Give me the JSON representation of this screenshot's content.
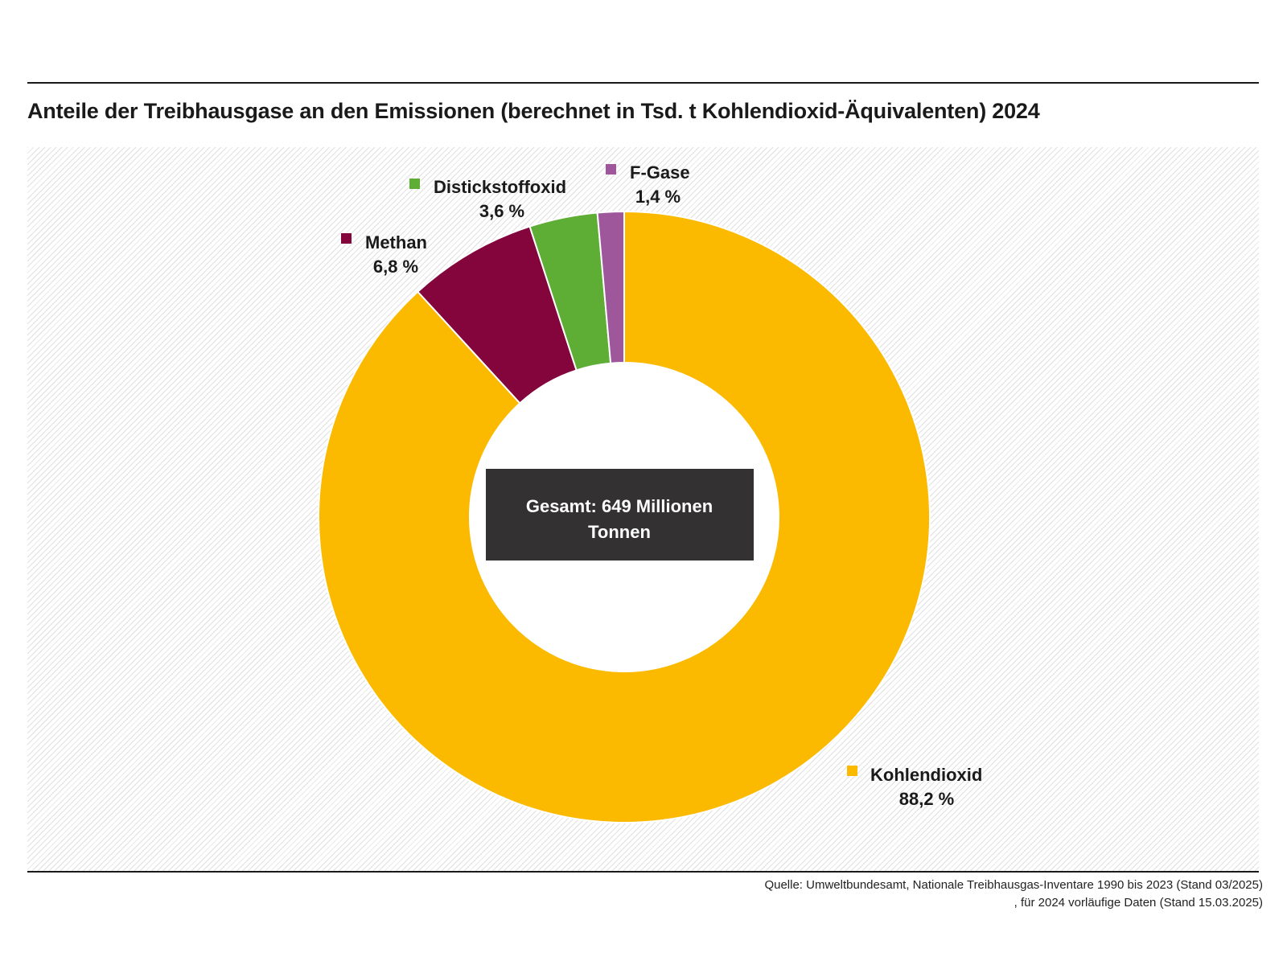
{
  "chart_data": {
    "type": "pie",
    "variant": "donut",
    "title": "Anteile der Treibhausgase an den Emissionen (berechnet in Tsd. t Kohlendioxid-Äquivalenten) 2024",
    "center_label": "Gesamt: 649 Millionen Tonnen",
    "center_label_lines": [
      "Gesamt: 649 Millionen",
      "Tonnen"
    ],
    "slices": [
      {
        "name": "Kohlendioxid",
        "value": 88.2,
        "label": "88,2 %",
        "color": "#FBBA00"
      },
      {
        "name": "Methan",
        "value": 6.8,
        "label": "6,8 %",
        "color": "#83053C"
      },
      {
        "name": "Distickstoffoxid",
        "value": 3.6,
        "label": "3,6 %",
        "color": "#5EAD35"
      },
      {
        "name": "F-Gase",
        "value": 1.4,
        "label": "1,4 %",
        "color": "#9D579A"
      }
    ],
    "start_angle": "top",
    "direction": "clockwise"
  },
  "source_text": "Quelle: Umweltbundesamt, Nationale Treibhausgas-Inventare 1990 bis 2023 (Stand 03/2025) , für 2024 vorläufige Daten (Stand 15.03.2025)",
  "colors": {
    "center_box": "#333132",
    "center_text": "#ffffff",
    "label_text": "#1a1a1a"
  }
}
